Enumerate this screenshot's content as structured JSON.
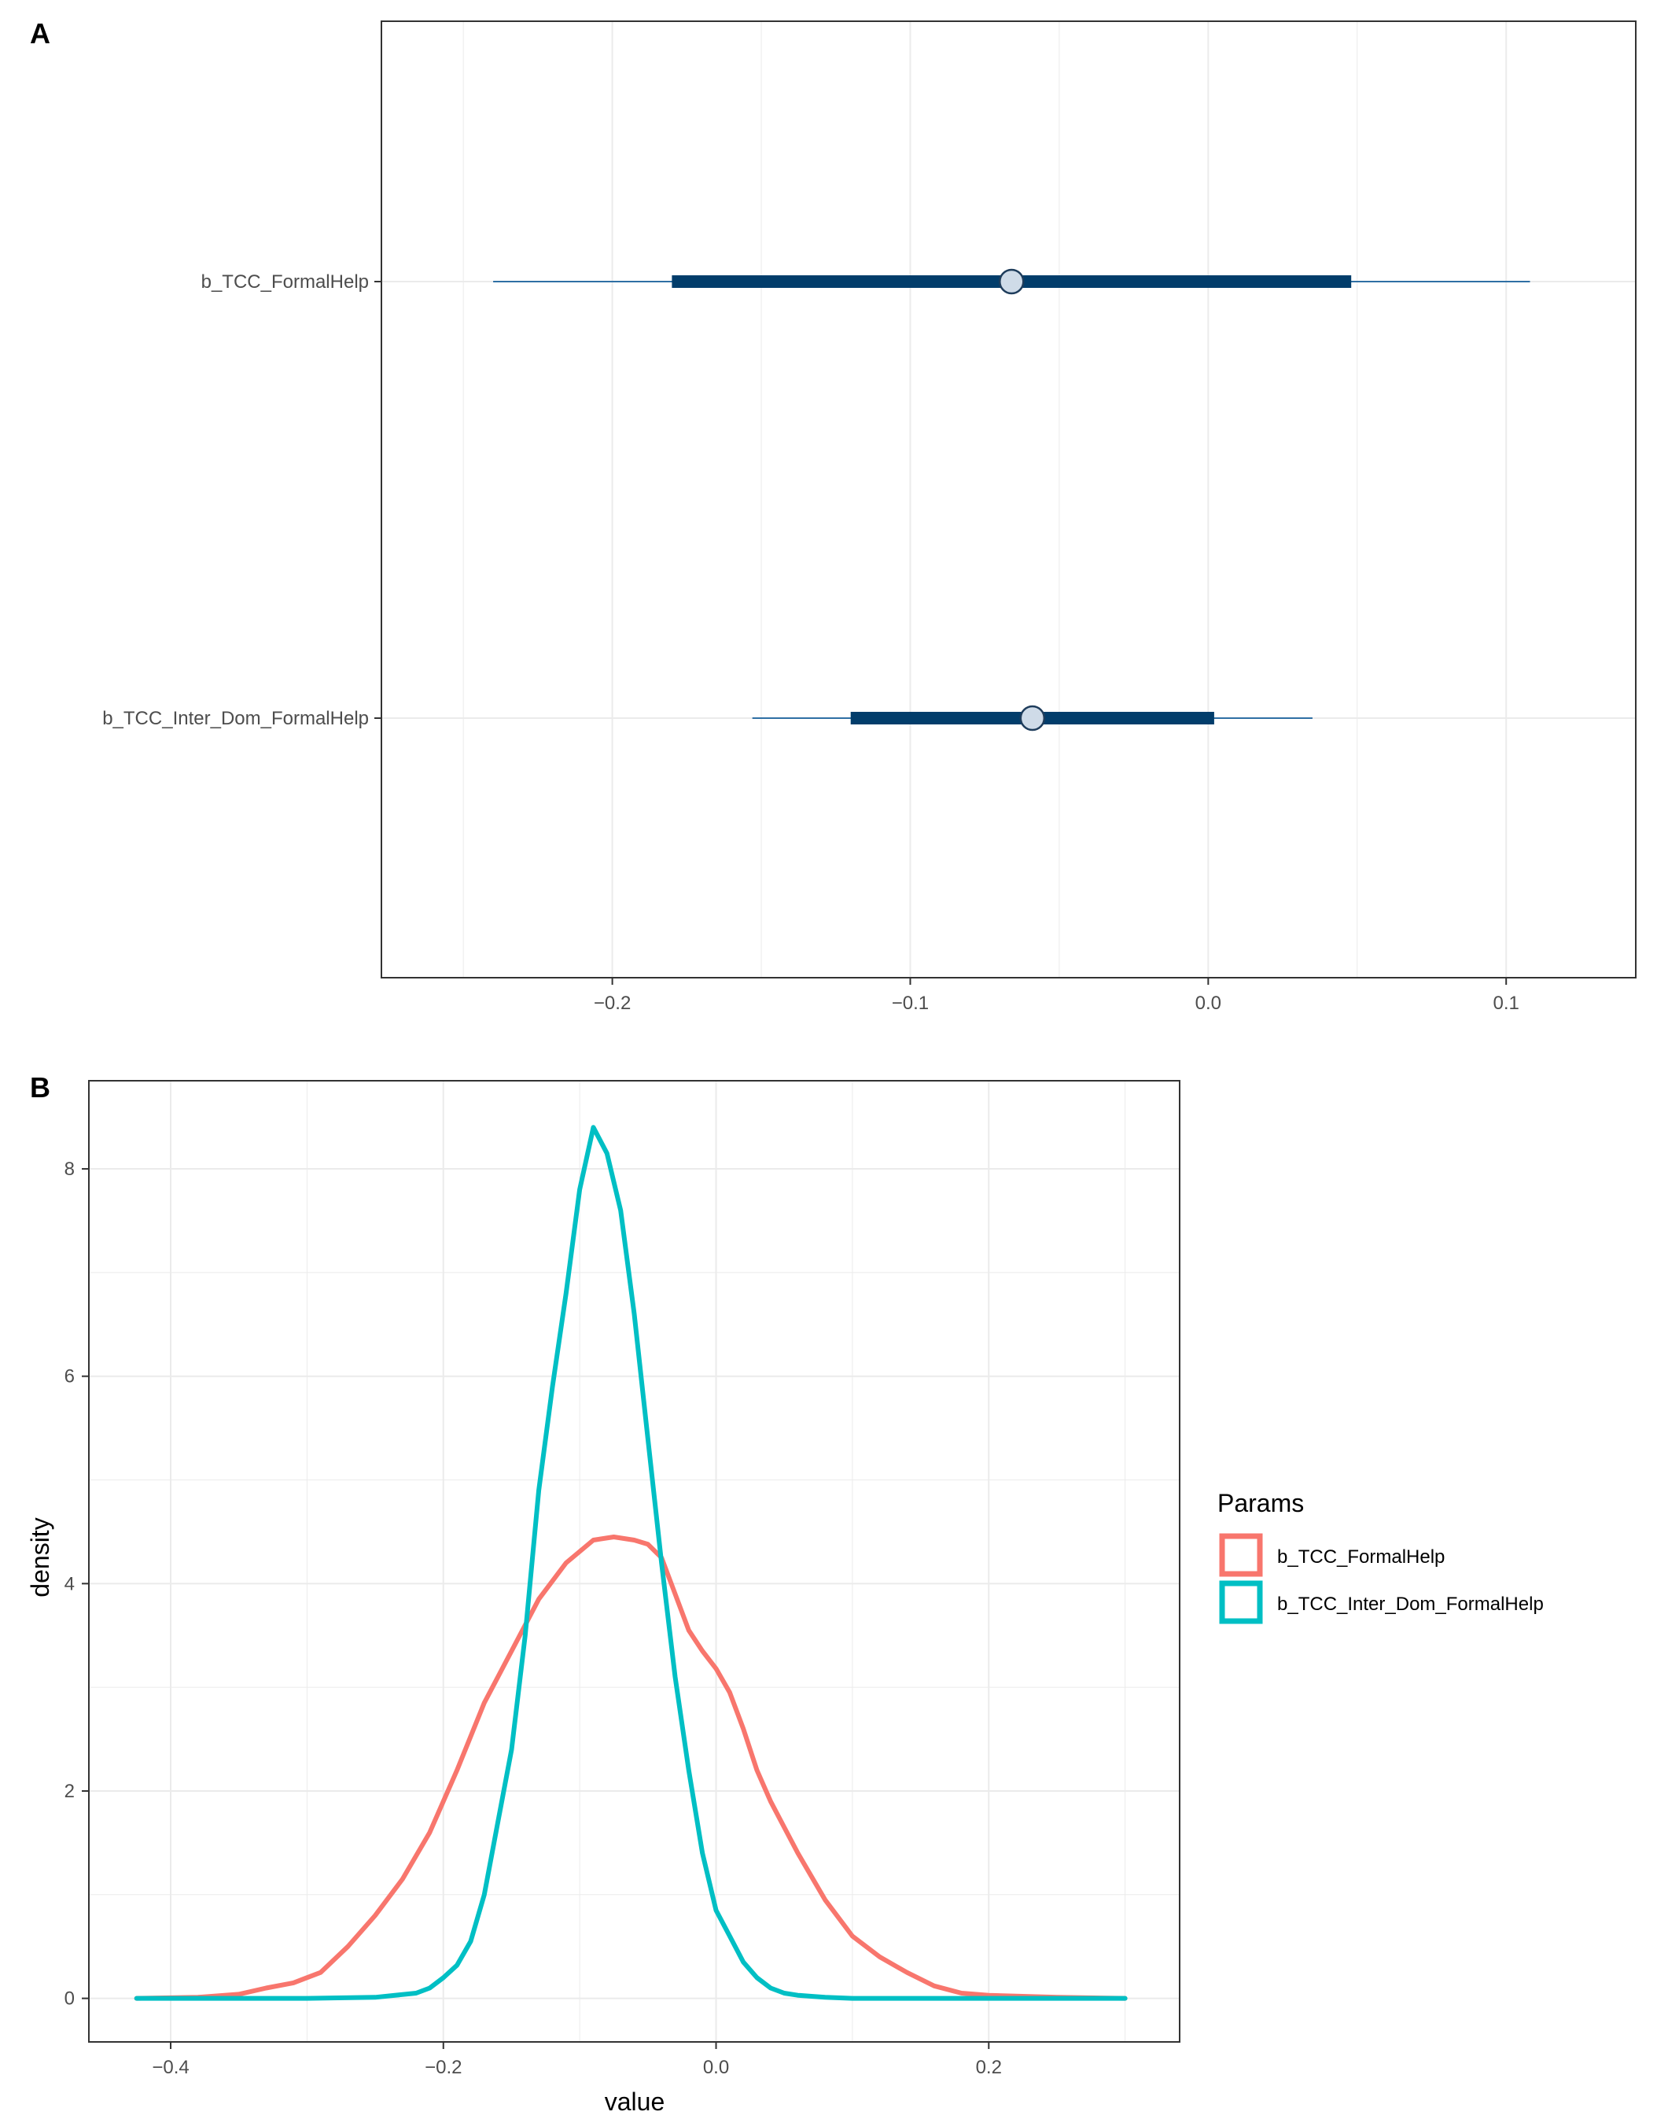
{
  "chart_data": [
    {
      "panel": "A",
      "type": "interval",
      "title": "",
      "xlabel": "",
      "ylabel": "",
      "xlim": [
        -0.2775,
        0.1435
      ],
      "xticks": [
        -0.2,
        -0.1,
        0.0,
        0.1
      ],
      "xtick_labels": [
        "−0.2",
        "−0.1",
        "0.0",
        "0.1"
      ],
      "grid": true,
      "colors": {
        "outer": "#2f6fa4",
        "inner": "#023d6b",
        "point_fill": "#cfdbe8",
        "point_stroke": "#1f3d5c",
        "grid": "#ebebeb"
      },
      "params": [
        {
          "label": "b_TCC_FormalHelp",
          "estimate": -0.066,
          "inner": [
            -0.18,
            0.048
          ],
          "outer": [
            -0.24,
            0.108
          ]
        },
        {
          "label": "b_TCC_Inter_Dom_FormalHelp",
          "estimate": -0.059,
          "inner": [
            -0.12,
            0.002
          ],
          "outer": [
            -0.153,
            0.035
          ]
        }
      ]
    },
    {
      "panel": "B",
      "type": "line",
      "title": "",
      "xlabel": "value",
      "ylabel": "density",
      "xlim": [
        -0.46,
        0.34
      ],
      "ylim": [
        -0.42,
        8.85
      ],
      "xticks": [
        -0.4,
        -0.2,
        0.0,
        0.2
      ],
      "xtick_labels": [
        "−0.4",
        "−0.2",
        "0.0",
        "0.2"
      ],
      "yticks": [
        0,
        2,
        4,
        6,
        8
      ],
      "ytick_labels": [
        "0",
        "2",
        "4",
        "6",
        "8"
      ],
      "grid": true,
      "legend": {
        "title": "Params",
        "position": "right"
      },
      "series": [
        {
          "name": "b_TCC_FormalHelp",
          "color": "#f8766d",
          "x": [
            -0.425,
            -0.38,
            -0.35,
            -0.33,
            -0.31,
            -0.29,
            -0.27,
            -0.25,
            -0.23,
            -0.21,
            -0.19,
            -0.17,
            -0.15,
            -0.13,
            -0.11,
            -0.09,
            -0.075,
            -0.06,
            -0.05,
            -0.04,
            -0.03,
            -0.02,
            -0.01,
            0.0,
            0.01,
            0.02,
            0.03,
            0.04,
            0.05,
            0.06,
            0.08,
            0.1,
            0.12,
            0.14,
            0.16,
            0.18,
            0.2,
            0.25,
            0.3
          ],
          "y": [
            0.0,
            0.01,
            0.04,
            0.1,
            0.15,
            0.25,
            0.5,
            0.8,
            1.15,
            1.6,
            2.2,
            2.85,
            3.35,
            3.85,
            4.2,
            4.42,
            4.45,
            4.42,
            4.38,
            4.25,
            3.9,
            3.55,
            3.35,
            3.18,
            2.95,
            2.6,
            2.2,
            1.9,
            1.65,
            1.4,
            0.95,
            0.6,
            0.4,
            0.25,
            0.12,
            0.05,
            0.03,
            0.01,
            0.0
          ]
        },
        {
          "name": "b_TCC_Inter_Dom_FormalHelp",
          "color": "#00bfc4",
          "x": [
            -0.425,
            -0.3,
            -0.25,
            -0.22,
            -0.21,
            -0.2,
            -0.19,
            -0.18,
            -0.17,
            -0.16,
            -0.15,
            -0.14,
            -0.13,
            -0.12,
            -0.11,
            -0.1,
            -0.09,
            -0.08,
            -0.07,
            -0.06,
            -0.05,
            -0.04,
            -0.03,
            -0.02,
            -0.01,
            0.0,
            0.01,
            0.02,
            0.03,
            0.04,
            0.05,
            0.06,
            0.07,
            0.08,
            0.1,
            0.13,
            0.2,
            0.3
          ],
          "y": [
            0.0,
            0.0,
            0.01,
            0.05,
            0.1,
            0.2,
            0.32,
            0.55,
            1.0,
            1.7,
            2.4,
            3.5,
            4.9,
            5.9,
            6.8,
            7.8,
            8.4,
            8.15,
            7.6,
            6.6,
            5.4,
            4.2,
            3.1,
            2.2,
            1.4,
            0.85,
            0.6,
            0.35,
            0.2,
            0.1,
            0.05,
            0.03,
            0.02,
            0.01,
            0.0,
            0.0,
            0.0,
            0.0
          ]
        }
      ]
    }
  ]
}
